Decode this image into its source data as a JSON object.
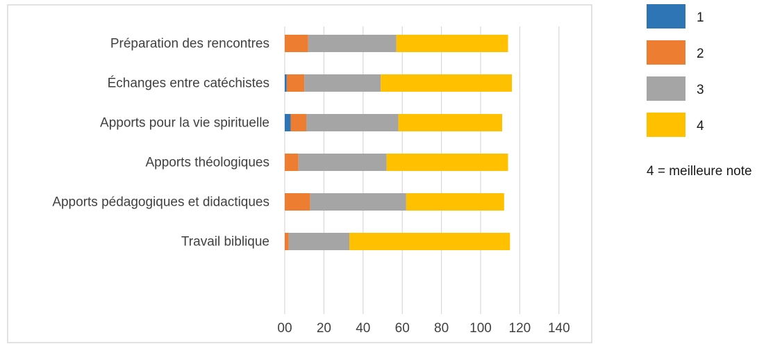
{
  "chart_data": {
    "type": "bar",
    "orientation": "horizontal",
    "stacked": true,
    "categories": [
      "Préparation des rencontres",
      "Échanges entre catéchistes",
      "Apports pour la vie spirituelle",
      "Apports théologiques",
      "Apports pédagogiques et didactiques",
      "Travail biblique"
    ],
    "series": [
      {
        "name": "1",
        "color": "#2E75B6",
        "values": [
          0,
          1,
          3,
          0,
          0,
          0
        ]
      },
      {
        "name": "2",
        "color": "#ED7D31",
        "values": [
          12,
          9,
          8,
          7,
          13,
          2
        ]
      },
      {
        "name": "3",
        "color": "#A5A5A5",
        "values": [
          45,
          39,
          47,
          45,
          49,
          31
        ]
      },
      {
        "name": "4",
        "color": "#FFC000",
        "values": [
          57,
          67,
          53,
          62,
          50,
          82
        ]
      }
    ],
    "x_ticks": [
      "00",
      "20",
      "40",
      "60",
      "80",
      "100",
      "120",
      "140"
    ],
    "xlim": [
      0,
      140
    ],
    "grid": "vertical",
    "legend_position": "right",
    "legend_note": "4 = meilleure note"
  }
}
